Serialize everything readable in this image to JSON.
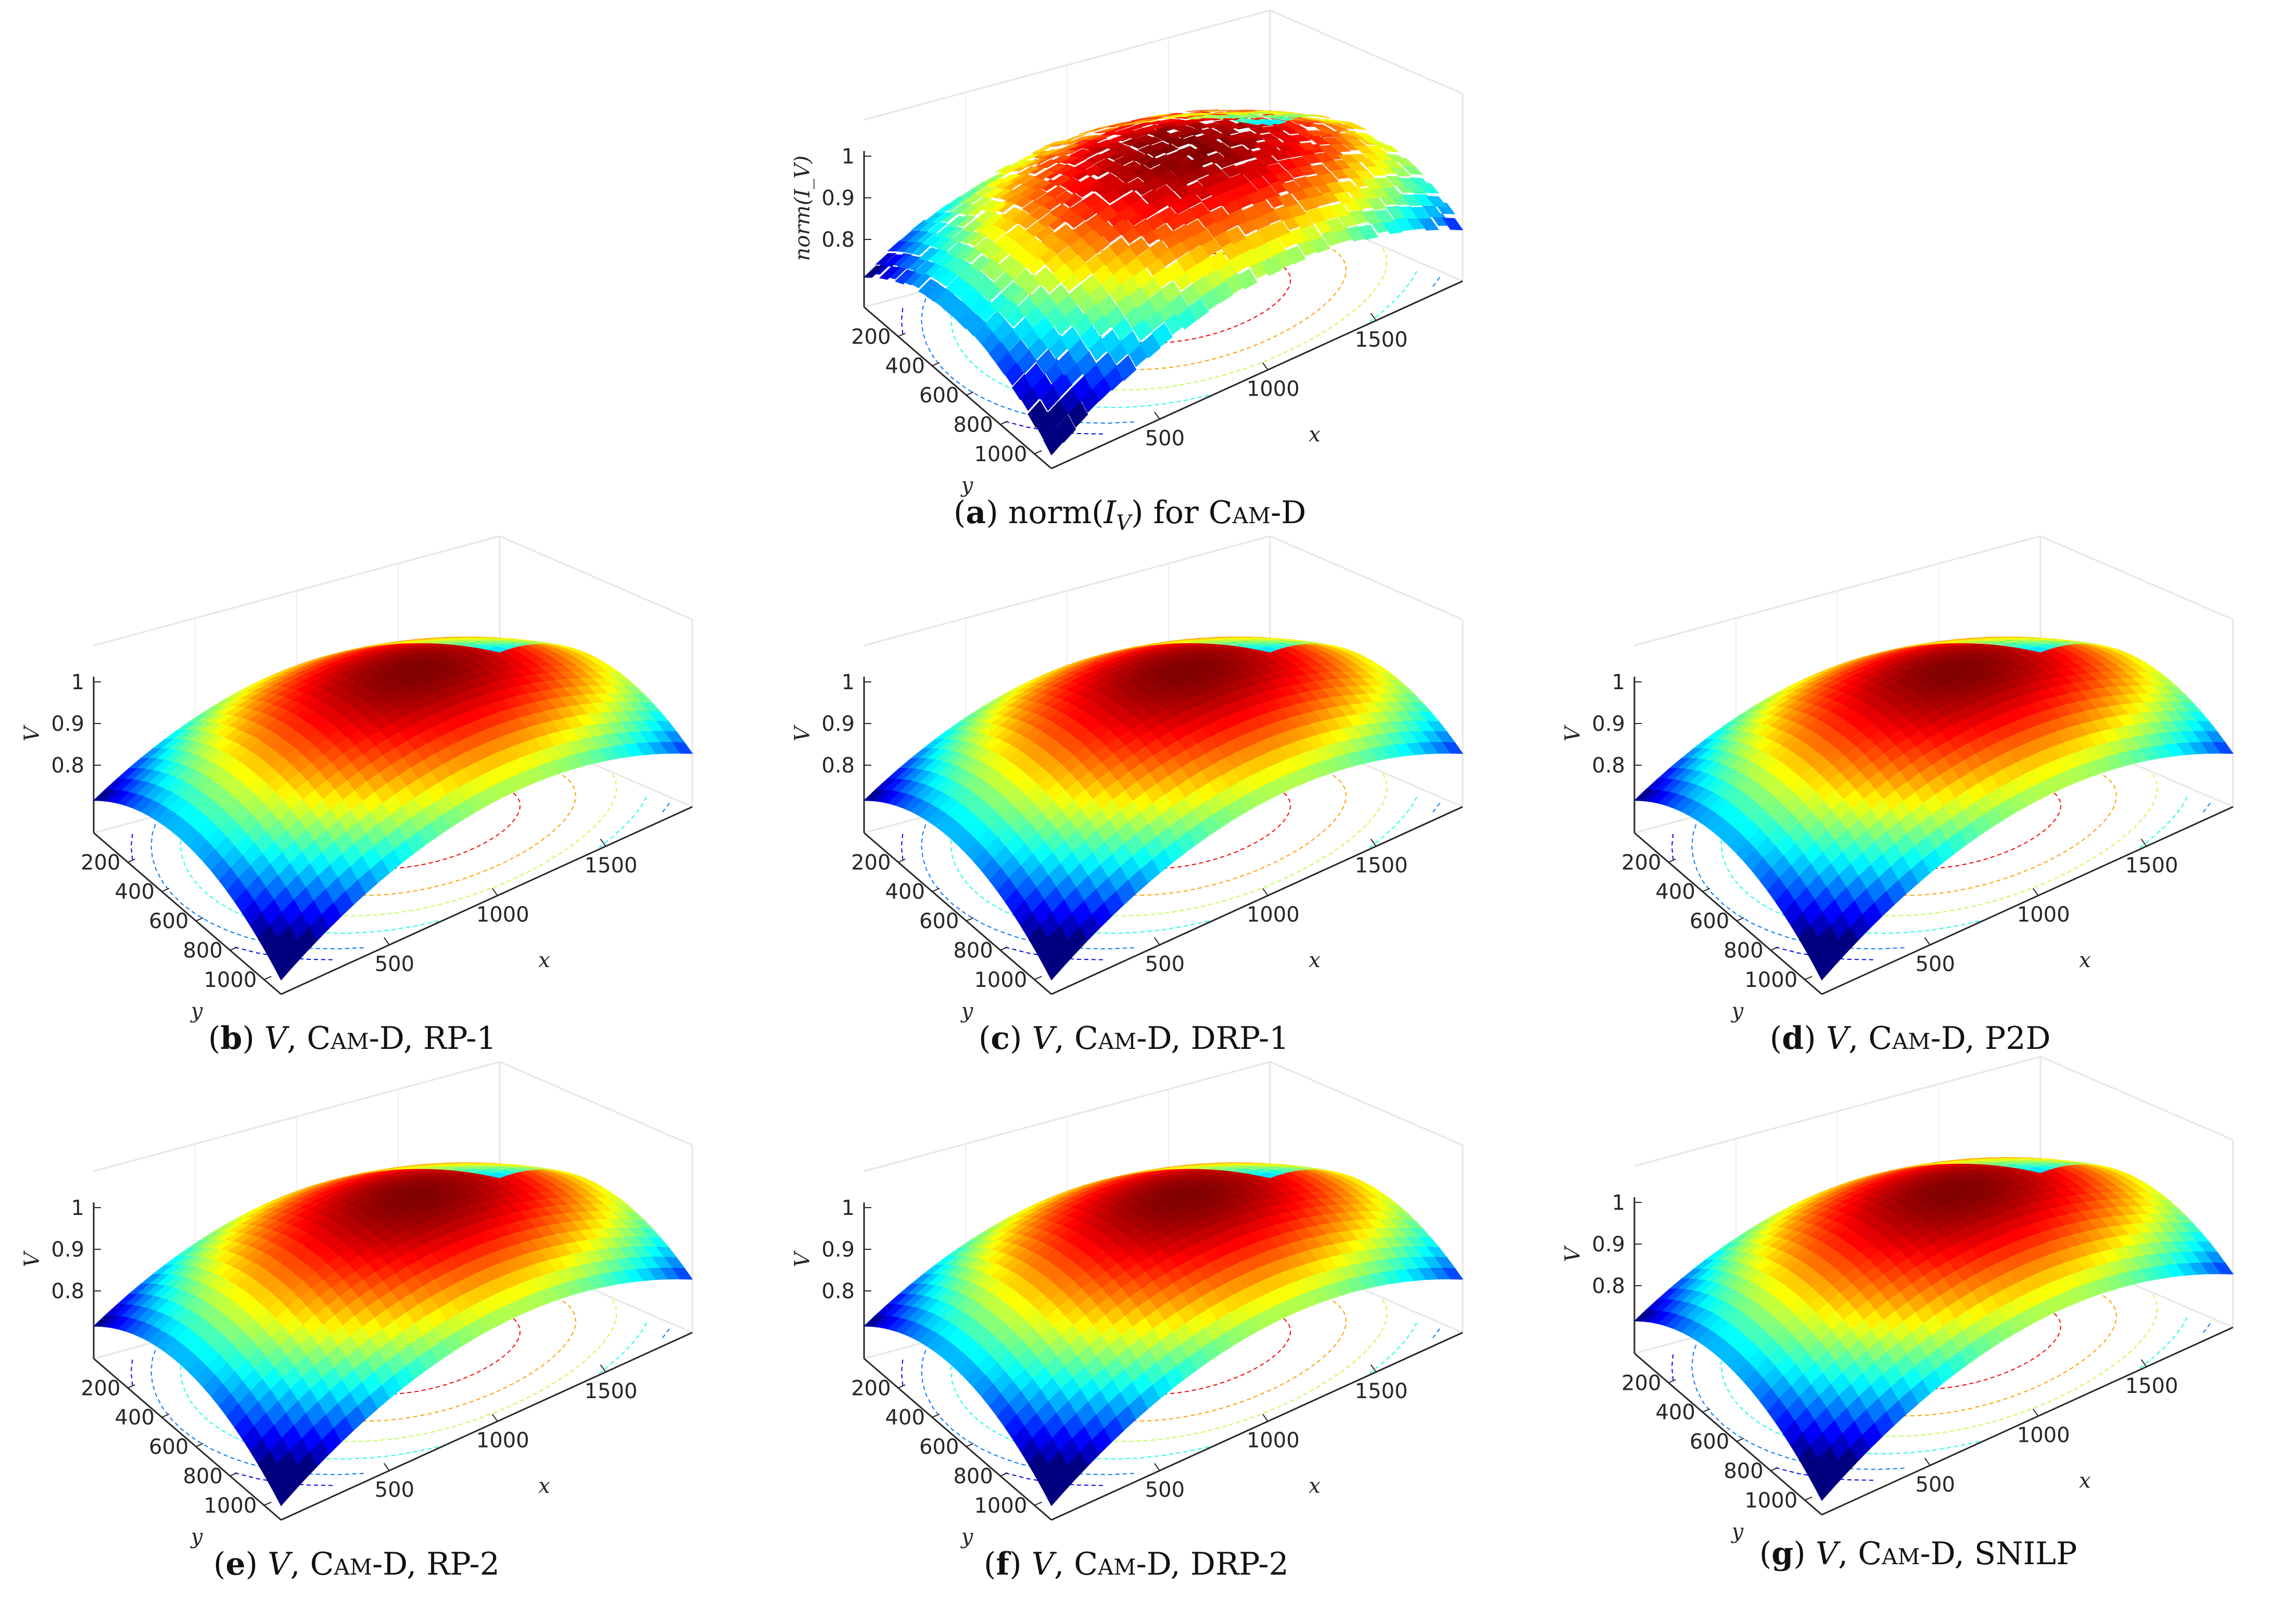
{
  "chart_data": [
    {
      "id": "a",
      "type": "surface",
      "caption_letter": "a",
      "caption_text": "norm(I_V) for CAM-D",
      "zlabel": "norm(I_V)",
      "xlabel": "x",
      "ylabel": "y",
      "x_ticks": [
        "500",
        "1000",
        "1500"
      ],
      "y_ticks": [
        "200",
        "400",
        "600",
        "800",
        "1000"
      ],
      "z_ticks": [
        "0.8",
        "0.9",
        "1"
      ],
      "zlim": [
        0.75,
        1.0
      ],
      "noisy": true
    },
    {
      "id": "b",
      "type": "surface",
      "caption_letter": "b",
      "caption_text": "V, CAM-D, RP-1",
      "zlabel": "V",
      "xlabel": "x",
      "ylabel": "y",
      "x_ticks": [
        "500",
        "1000",
        "1500"
      ],
      "y_ticks": [
        "200",
        "400",
        "600",
        "800",
        "1000"
      ],
      "z_ticks": [
        "0.8",
        "0.9",
        "1"
      ],
      "zlim": [
        0.75,
        1.0
      ],
      "noisy": false
    },
    {
      "id": "c",
      "type": "surface",
      "caption_letter": "c",
      "caption_text": "V, CAM-D, DRP-1",
      "zlabel": "V",
      "xlabel": "x",
      "ylabel": "y",
      "x_ticks": [
        "500",
        "1000",
        "1500"
      ],
      "y_ticks": [
        "200",
        "400",
        "600",
        "800",
        "1000"
      ],
      "z_ticks": [
        "0.8",
        "0.9",
        "1"
      ],
      "zlim": [
        0.75,
        1.0
      ],
      "noisy": false
    },
    {
      "id": "d",
      "type": "surface",
      "caption_letter": "d",
      "caption_text": "V, CAM-D, P2D",
      "zlabel": "V",
      "xlabel": "x",
      "ylabel": "y",
      "x_ticks": [
        "500",
        "1000",
        "1500"
      ],
      "y_ticks": [
        "200",
        "400",
        "600",
        "800",
        "1000"
      ],
      "z_ticks": [
        "0.8",
        "0.9",
        "1"
      ],
      "zlim": [
        0.75,
        1.0
      ],
      "noisy": false
    },
    {
      "id": "e",
      "type": "surface",
      "caption_letter": "e",
      "caption_text": "V, CAM-D, RP-2",
      "zlabel": "V",
      "xlabel": "x",
      "ylabel": "y",
      "x_ticks": [
        "500",
        "1000",
        "1500"
      ],
      "y_ticks": [
        "200",
        "400",
        "600",
        "800",
        "1000"
      ],
      "z_ticks": [
        "0.8",
        "0.9",
        "1"
      ],
      "zlim": [
        0.75,
        1.0
      ],
      "noisy": false
    },
    {
      "id": "f",
      "type": "surface",
      "caption_letter": "f",
      "caption_text": "V, CAM-D, DRP-2",
      "zlabel": "V",
      "xlabel": "x",
      "ylabel": "y",
      "x_ticks": [
        "500",
        "1000",
        "1500"
      ],
      "y_ticks": [
        "200",
        "400",
        "600",
        "800",
        "1000"
      ],
      "z_ticks": [
        "0.8",
        "0.9",
        "1"
      ],
      "zlim": [
        0.75,
        1.0
      ],
      "noisy": false
    },
    {
      "id": "g",
      "type": "surface",
      "caption_letter": "g",
      "caption_text": "V, CAM-D, SNILP",
      "zlabel": "V",
      "xlabel": "x",
      "ylabel": "y",
      "x_ticks": [
        "500",
        "1000",
        "1500"
      ],
      "y_ticks": [
        "200",
        "400",
        "600",
        "800",
        "1000"
      ],
      "z_ticks": [
        "0.8",
        "0.9",
        "1"
      ],
      "zlim": [
        0.75,
        1.0
      ],
      "noisy": false
    }
  ],
  "captions": {
    "a": {
      "letter": "a",
      "pre": "norm(",
      "var": "I",
      "sub": "V",
      "post": ") for ",
      "sc": "Cam",
      "tail": "-D"
    },
    "b": {
      "letter": "b",
      "var": "V",
      "sc": "Cam",
      "tail": "-D, RP-1"
    },
    "c": {
      "letter": "c",
      "var": "V",
      "sc": "Cam",
      "tail": "-D, DRP-1"
    },
    "d": {
      "letter": "d",
      "var": "V",
      "sc": "Cam",
      "tail": "-D, P2D"
    },
    "e": {
      "letter": "e",
      "var": "V",
      "sc": "Cam",
      "tail": "-D, RP-2"
    },
    "f": {
      "letter": "f",
      "var": "V",
      "sc": "Cam",
      "tail": "-D, DRP-2"
    },
    "g": {
      "letter": "g",
      "var": "V",
      "sc": "Cam",
      "tail": "-D, SNILP"
    }
  },
  "colors": {
    "colormap": "jet",
    "axis": "#262626",
    "grid": "#e6e6e6"
  }
}
